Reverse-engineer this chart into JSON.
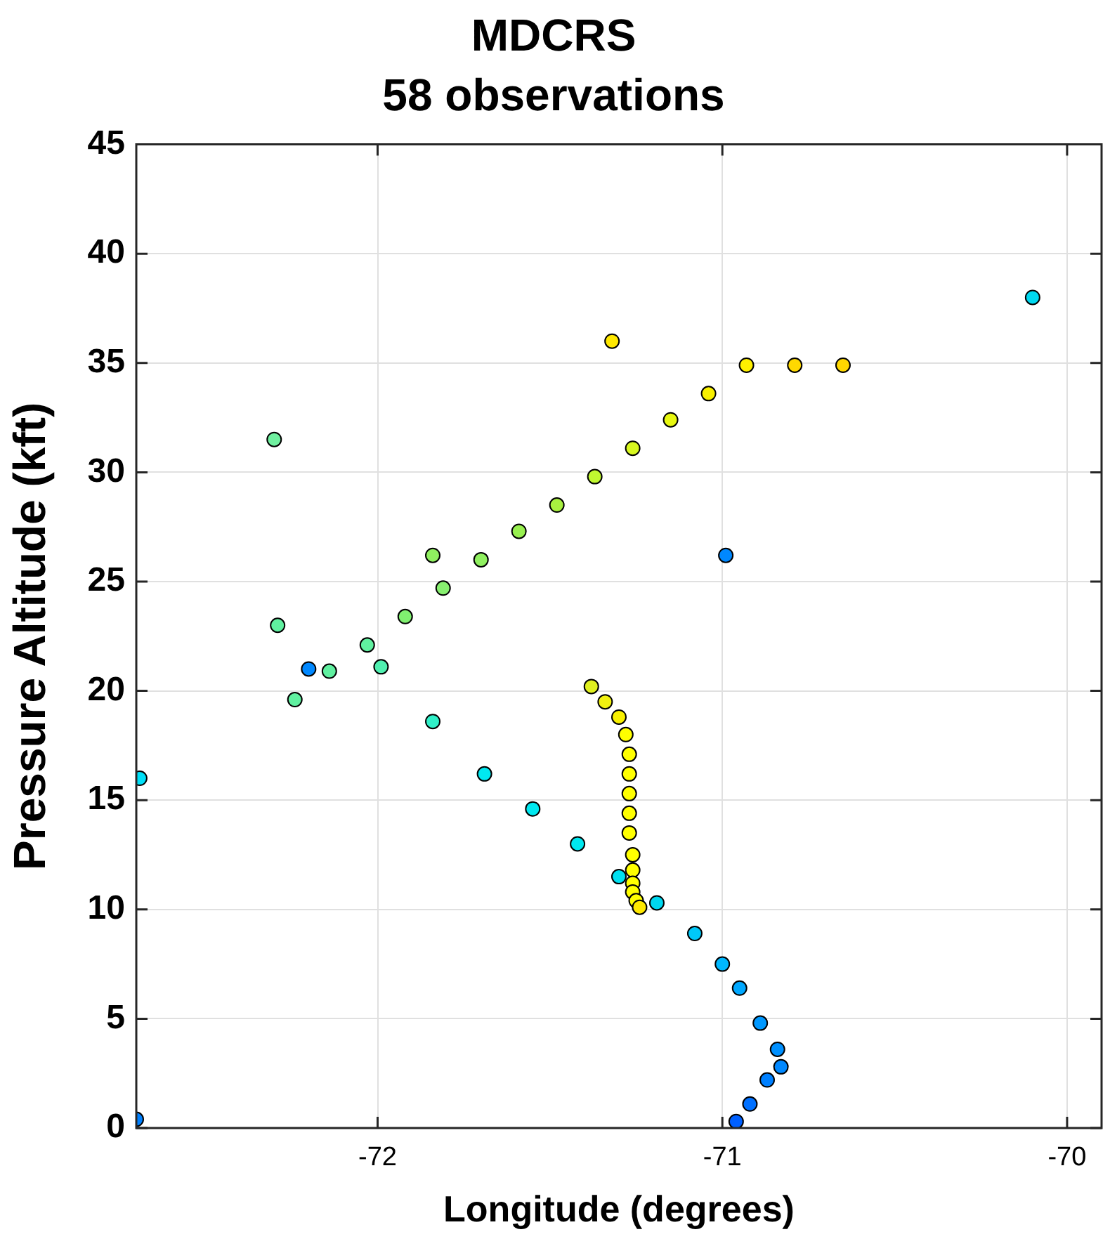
{
  "chart_data": {
    "type": "scatter",
    "title": "MDCRS",
    "subtitle": "58 observations",
    "xlabel": "Longitude (degrees)",
    "ylabel": "Pressure Altitude (kft)",
    "xlim": [
      -72.7,
      -69.9
    ],
    "xticks": [
      -72,
      -71,
      -70
    ],
    "ylim": [
      0,
      45
    ],
    "yticks": [
      0,
      5,
      10,
      15,
      20,
      25,
      30,
      35,
      40,
      45
    ],
    "grid": true,
    "marker": "circle",
    "x": [
      -70.1,
      -71.32,
      -70.93,
      -70.79,
      -70.65,
      -71.04,
      -71.15,
      -71.26,
      -71.37,
      -71.48,
      -71.59,
      -71.7,
      -71.84,
      -71.81,
      -71.92,
      -72.3,
      -72.29,
      -70.99,
      -72.03,
      -72.2,
      -72.14,
      -71.99,
      -72.24,
      -71.84,
      -72.69,
      -71.69,
      -71.55,
      -71.42,
      -71.3,
      -71.19,
      -71.08,
      -71.0,
      -70.95,
      -70.89,
      -70.84,
      -70.83,
      -70.87,
      -70.92,
      -70.96,
      -72.7,
      -71.38,
      -71.34,
      -71.3,
      -71.28,
      -71.27,
      -71.27,
      -71.27,
      -71.27,
      -71.27,
      -71.26,
      -71.26,
      -71.26,
      -71.26,
      -71.25,
      -71.24
    ],
    "values": [
      38.0,
      36.0,
      34.9,
      34.9,
      34.9,
      33.6,
      32.4,
      31.1,
      29.8,
      28.5,
      27.3,
      26.0,
      26.2,
      24.7,
      23.4,
      31.5,
      23.0,
      26.2,
      22.1,
      21.0,
      20.9,
      21.1,
      19.6,
      18.6,
      16.0,
      16.2,
      14.6,
      13.0,
      11.5,
      10.3,
      8.9,
      7.5,
      6.4,
      4.8,
      3.6,
      2.8,
      2.2,
      1.1,
      0.3,
      0.4,
      20.2,
      19.5,
      18.8,
      18.0,
      17.1,
      16.2,
      15.3,
      14.4,
      13.5,
      12.5,
      11.8,
      11.2,
      10.8,
      10.4,
      10.1
    ],
    "colors": [
      "#00d8f0",
      "#ffe800",
      "#fff000",
      "#ffd800",
      "#ffd800",
      "#f8f000",
      "#e8f810",
      "#d8f820",
      "#c0f830",
      "#a8f040",
      "#98f050",
      "#90f060",
      "#90f060",
      "#88f070",
      "#80f070",
      "#70f0a0",
      "#60f0a0",
      "#0088ff",
      "#60f0a0",
      "#0088ff",
      "#60f0a0",
      "#50f0b0",
      "#60f0a0",
      "#30f0c8",
      "#00e0f8",
      "#00e8f0",
      "#00e8f0",
      "#00e8f0",
      "#00e0f0",
      "#00d8f0",
      "#00c8f8",
      "#00b8ff",
      "#00a8ff",
      "#0098ff",
      "#0090ff",
      "#0088ff",
      "#0080ff",
      "#0070ff",
      "#0060ff",
      "#0080ff",
      "#e0f020",
      "#f0f010",
      "#f8f000",
      "#ffff00",
      "#ffff00",
      "#ffff00",
      "#ffff00",
      "#ffff00",
      "#ffff00",
      "#ffff00",
      "#ffff00",
      "#ffff00",
      "#ffff00",
      "#ffff00",
      "#ffe800"
    ]
  }
}
